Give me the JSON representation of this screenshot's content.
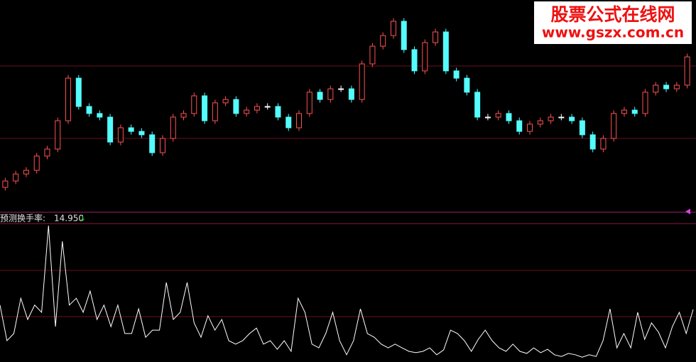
{
  "chart_data": [
    {
      "type": "candlestick",
      "color_up": "#ff5252",
      "color_down": "#54fcfc",
      "color_flat": "#ffffff",
      "ylim": [
        0,
        100
      ],
      "open": [
        12,
        15,
        18.3,
        20,
        26.7,
        30,
        43.3,
        63.3,
        50,
        46.7,
        45,
        33.3,
        40,
        38.3,
        36.7,
        28.3,
        35,
        45,
        46.7,
        55,
        43.3,
        51.7,
        53.3,
        46.7,
        48.3,
        50,
        50,
        45,
        40,
        46.7,
        56.7,
        53.3,
        58.3,
        58.3,
        53.3,
        70,
        78.3,
        83.3,
        90,
        76.7,
        66.7,
        80,
        85,
        66.7,
        63.3,
        56.7,
        45,
        45,
        46.7,
        43.3,
        38.3,
        41.7,
        43.3,
        45,
        45,
        43.3,
        36.7,
        30,
        35,
        46.7,
        48.3,
        46.7,
        56.7,
        60,
        58.3,
        60
      ],
      "high": [
        16.5,
        19.8,
        21.5,
        28.2,
        31.5,
        44.8,
        64.8,
        64.8,
        51.5,
        48.2,
        46.5,
        41.5,
        41.5,
        39.8,
        38.2,
        36.5,
        46.5,
        48.2,
        56.5,
        56.5,
        53.2,
        54.8,
        54.8,
        49.8,
        51.5,
        51.5,
        51.5,
        46.5,
        48.2,
        58.2,
        58.2,
        59.8,
        59.8,
        59.8,
        71.5,
        79.8,
        84.8,
        91.5,
        91.5,
        78.2,
        81.5,
        86.5,
        86.5,
        68.2,
        64.8,
        58.2,
        46.5,
        48.2,
        48.2,
        44.8,
        43.2,
        44.8,
        46.5,
        46.5,
        46.5,
        44.8,
        38.2,
        36.5,
        48.2,
        49.8,
        49.8,
        58.2,
        61.5,
        61.5,
        61.5,
        74.8
      ],
      "low": [
        10.5,
        13.5,
        16.8,
        18.5,
        25.2,
        28.5,
        41.8,
        48.5,
        45.2,
        43.5,
        31.8,
        31.8,
        36.8,
        35.2,
        26.8,
        26.8,
        33.5,
        43.5,
        45.2,
        41.8,
        41.8,
        50.2,
        45.2,
        45.2,
        46.8,
        48.5,
        43.5,
        38.5,
        38.5,
        45.2,
        51.8,
        51.8,
        56.8,
        51.8,
        51.8,
        68.5,
        76.8,
        81.8,
        75.2,
        65.2,
        65.2,
        78.5,
        65.2,
        61.8,
        55.2,
        43.5,
        43.5,
        43.5,
        41.8,
        36.8,
        36.8,
        40.2,
        41.8,
        43.5,
        41.8,
        35.2,
        28.5,
        28.5,
        33.5,
        45.2,
        45.2,
        45.2,
        55.2,
        56.8,
        56.8,
        58.5
      ],
      "close": [
        15,
        18.3,
        20,
        26.7,
        30,
        43.3,
        63.3,
        50,
        46.7,
        45,
        33.3,
        40,
        38.3,
        36.7,
        28.3,
        35,
        45,
        46.7,
        55,
        43.3,
        51.7,
        53.3,
        46.7,
        48.3,
        50,
        50,
        45,
        40,
        46.7,
        56.7,
        53.3,
        58.3,
        58.3,
        53.3,
        70,
        78.3,
        83.3,
        90,
        76.7,
        66.7,
        80,
        85,
        66.7,
        63.3,
        56.7,
        45,
        45,
        46.7,
        43.3,
        38.3,
        41.7,
        43.3,
        45,
        45,
        43.3,
        36.7,
        30,
        35,
        46.7,
        48.3,
        46.7,
        56.7,
        60,
        58.3,
        60,
        73.3
      ]
    },
    {
      "type": "line",
      "title": "预测换手率:",
      "current_label": "14.950",
      "color": "#ffffff",
      "ylim": [
        0,
        40
      ],
      "values": [
        16.2,
        5.8,
        7.9,
        18.2,
        12.0,
        16.2,
        14.1,
        39.4,
        9.9,
        34.8,
        16.2,
        18.2,
        14.1,
        20.3,
        12.0,
        16.2,
        9.9,
        16.2,
        7.9,
        7.9,
        15.1,
        6.8,
        8.9,
        8.9,
        22.8,
        12.0,
        14.1,
        22.8,
        11.0,
        6.8,
        13.1,
        8.9,
        12.0,
        5.8,
        4.8,
        5.8,
        7.9,
        9.5,
        4.8,
        5.8,
        3.3,
        5.8,
        2.7,
        18.2,
        14.1,
        4.8,
        3.7,
        7.9,
        14.1,
        5.8,
        1.7,
        5.8,
        15.1,
        7.9,
        6.8,
        4.8,
        3.7,
        4.8,
        3.7,
        2.7,
        2.3,
        2.7,
        3.7,
        1.7,
        3.1,
        8.9,
        7.9,
        5.8,
        2.7,
        6.2,
        8.9,
        5.8,
        3.7,
        2.7,
        4.8,
        2.7,
        2.1,
        3.7,
        2.3,
        3.3,
        1.7,
        1.2,
        2.1,
        1.7,
        1.0,
        1.7,
        1.2,
        5.8,
        15.1,
        3.7,
        7.9,
        3.7,
        14.1,
        6.2,
        11.0,
        8.3,
        3.7,
        9.9,
        14.1,
        7.9,
        14.95
      ]
    }
  ],
  "watermark": {
    "title": "股票公式在线网",
    "url": "www.gszx.com.cn"
  }
}
